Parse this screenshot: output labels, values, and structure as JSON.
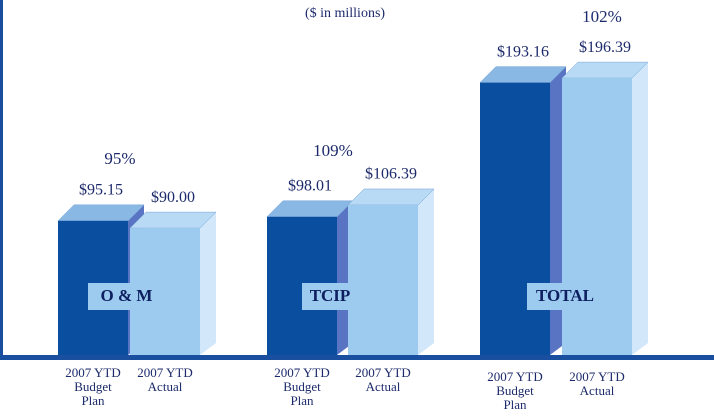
{
  "chart_data": {
    "type": "bar",
    "subtitle": "($ in millions)",
    "categories": [
      "O & M",
      "TCIP",
      "TOTAL"
    ],
    "series": [
      {
        "name": "2007 YTD Budget Plan",
        "color": "#0a4f9f",
        "values": [
          95.15,
          98.01,
          193.16
        ],
        "value_labels": [
          "$95.15",
          "$98.01",
          "$193.16"
        ]
      },
      {
        "name": "2007 YTD Actual",
        "color": "#9dcbef",
        "values": [
          90.0,
          106.39,
          196.39
        ],
        "value_labels": [
          "$90.00",
          "$106.39",
          "$196.39"
        ]
      }
    ],
    "percent_labels": [
      "95%",
      "109%",
      "102%"
    ]
  }
}
